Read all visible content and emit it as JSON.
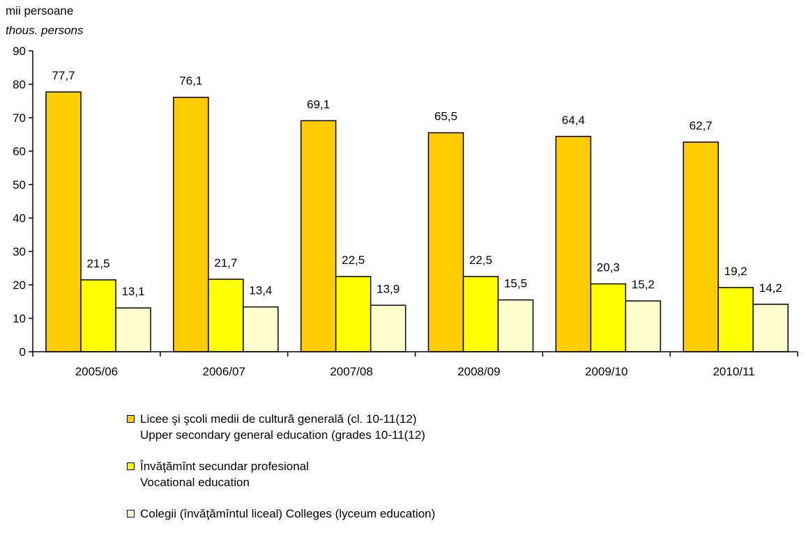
{
  "unit": {
    "ro": "mii persoane",
    "en": "thous.  persons"
  },
  "chart_data": {
    "type": "bar",
    "categories": [
      "2005/06",
      "2006/07",
      "2007/08",
      "2008/09",
      "2009/10",
      "2010/11"
    ],
    "ylim": [
      0,
      90
    ],
    "yticks": [
      0,
      10,
      20,
      30,
      40,
      50,
      60,
      70,
      80,
      90
    ],
    "series": [
      {
        "name_ro": "Licee şi şcoli medii de cultură generală (cl. 10-11(12)",
        "name_en": "Upper secondary general education (grades 10-11(12)",
        "color": "#FFCC00",
        "values": [
          77.7,
          76.1,
          69.1,
          65.5,
          64.4,
          62.7
        ],
        "labels": [
          "77,7",
          "76,1",
          "69,1",
          "65,5",
          "64,4",
          "62,7"
        ]
      },
      {
        "name_ro": "Învăţămînt secundar profesional",
        "name_en": "Vocational education",
        "color": "#FFFF00",
        "values": [
          21.5,
          21.7,
          22.5,
          22.5,
          20.3,
          19.2
        ],
        "labels": [
          "21,5",
          "21,7",
          "22,5",
          "22,5",
          "20,3",
          "19,2"
        ]
      },
      {
        "name_ro": "Colegii (învăţămîntul liceal) Colleges (lyceum education)",
        "name_en": "",
        "color": "#FFFFCC",
        "values": [
          13.1,
          13.4,
          13.9,
          15.5,
          15.2,
          14.2
        ],
        "labels": [
          "13,1",
          "13,4",
          "13,9",
          "15,5",
          "15,2",
          "14,2"
        ]
      }
    ],
    "grid": false,
    "legend_position": "bottom"
  }
}
